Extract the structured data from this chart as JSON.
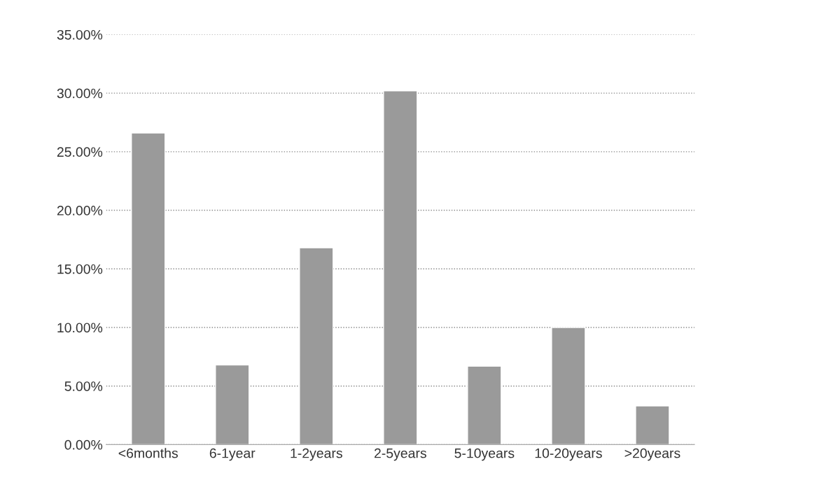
{
  "chart_data": {
    "type": "bar",
    "categories": [
      "<6months",
      "6-1year",
      "1-2years",
      "2-5years",
      "5-10years",
      "10-20years",
      ">20years"
    ],
    "values": [
      26.6,
      6.8,
      16.8,
      30.2,
      6.7,
      10.0,
      3.3
    ],
    "color": "#9a9a9a",
    "ylim": [
      0,
      35
    ],
    "yticks": [
      {
        "value": 0,
        "label": "0.00%"
      },
      {
        "value": 5,
        "label": "5.00%"
      },
      {
        "value": 10,
        "label": "10.00%"
      },
      {
        "value": 15,
        "label": "15.00%"
      },
      {
        "value": 20,
        "label": "20.00%"
      },
      {
        "value": 25,
        "label": "25.00%"
      },
      {
        "value": 30,
        "label": "30.00%"
      },
      {
        "value": 35,
        "label": "35.00%"
      }
    ],
    "grid": "y"
  }
}
